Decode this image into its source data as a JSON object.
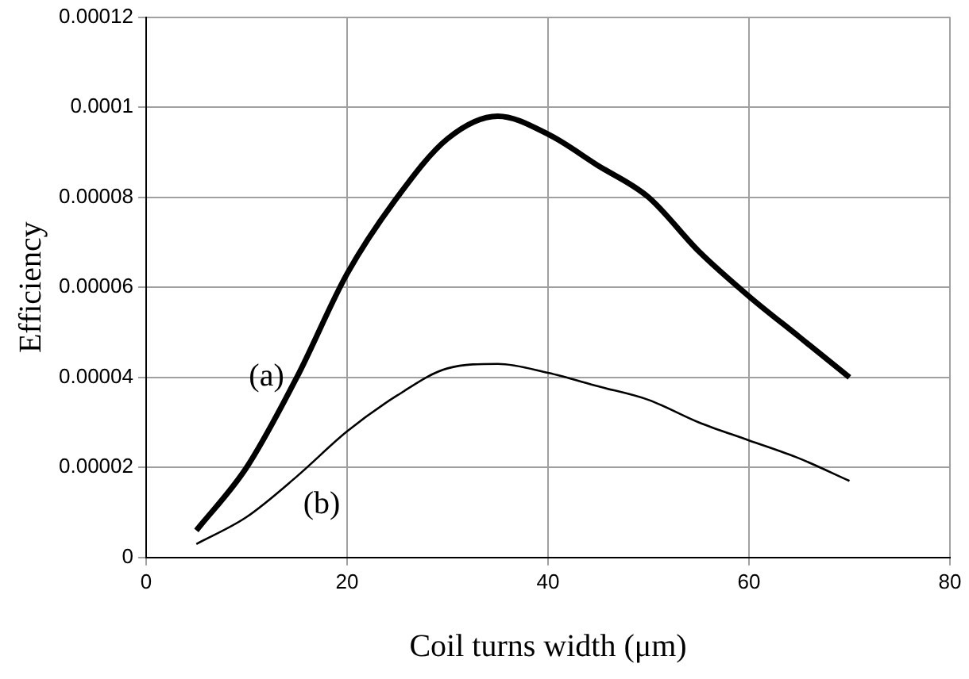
{
  "chart_data": {
    "type": "line",
    "xlabel": "Coil turns width (μm)",
    "ylabel": "Efficiency",
    "x": [
      5,
      10,
      15,
      20,
      25,
      30,
      35,
      40,
      45,
      50,
      55,
      60,
      65,
      70
    ],
    "series": [
      {
        "name": "(a)",
        "color": "#000000",
        "values": [
          6e-06,
          2e-05,
          4e-05,
          6.3e-05,
          8e-05,
          9.3e-05,
          9.8e-05,
          9.4e-05,
          8.7e-05,
          8e-05,
          6.8e-05,
          5.8e-05,
          4.9e-05,
          4e-05
        ]
      },
      {
        "name": "(b)",
        "color": "#000000",
        "values": [
          3e-06,
          9e-06,
          1.8e-05,
          2.8e-05,
          3.6e-05,
          4.2e-05,
          4.3e-05,
          4.1e-05,
          3.8e-05,
          3.5e-05,
          3e-05,
          2.6e-05,
          2.2e-05,
          1.7e-05
        ]
      }
    ],
    "xlim": [
      0,
      80
    ],
    "xticks": [
      0,
      20,
      40,
      60,
      80
    ],
    "ylim": [
      0,
      0.00012
    ],
    "yticks": [
      0,
      {
        "value": 2e-05,
        "label": "0.00002"
      },
      {
        "value": 4e-05,
        "label": "0.00004"
      },
      {
        "value": 6e-05,
        "label": "0.00006"
      },
      {
        "value": 8e-05,
        "label": "0.00008"
      },
      0.0001,
      0.00012
    ],
    "grid": true,
    "legend": false,
    "marker": "none",
    "line_style": "solid"
  }
}
